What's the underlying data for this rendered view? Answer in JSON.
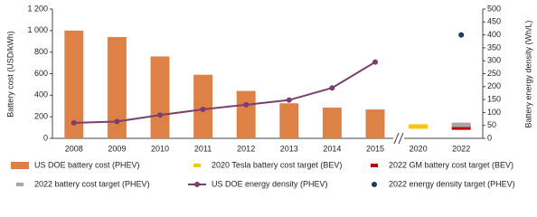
{
  "chart_data": {
    "type": "combo",
    "y_label": "Battery cost (USD/kWh)",
    "y2_label": "Battery energy density (Wh/L)",
    "categories": [
      "2008",
      "2009",
      "2010",
      "2011",
      "2012",
      "2013",
      "2014",
      "2015",
      "2020",
      "2022"
    ],
    "ylim": [
      0,
      1200
    ],
    "yticks": [
      0,
      200,
      400,
      600,
      800,
      {
        "value": 1000,
        "label": "1 000"
      },
      {
        "value": 1200,
        "label": "1 200"
      }
    ],
    "y2lim": [
      0,
      500
    ],
    "y2ticks": [
      0,
      50,
      100,
      150,
      200,
      250,
      300,
      350,
      400,
      450,
      500
    ],
    "grid": false,
    "series": [
      {
        "name": "US DOE battery cost (PHEV)",
        "type": "bar",
        "color": "#dd8147",
        "values": [
          1000,
          940,
          760,
          590,
          440,
          325,
          285,
          268,
          null,
          null
        ]
      },
      {
        "name": "2020 Tesla battery cost target (BEV)",
        "type": "dash",
        "color": "#f5c518",
        "values": [
          null,
          null,
          null,
          null,
          null,
          null,
          null,
          null,
          110,
          null
        ]
      },
      {
        "name": "2022 GM battery cost target (BEV)",
        "type": "dash",
        "color": "#c00000",
        "values": [
          null,
          null,
          null,
          null,
          null,
          null,
          null,
          null,
          null,
          100
        ]
      },
      {
        "name": "2022 battery cost target (PHEV)",
        "type": "dash",
        "color": "#a6a6a6",
        "values": [
          null,
          null,
          null,
          null,
          null,
          null,
          null,
          null,
          null,
          125
        ]
      },
      {
        "name": "US DOE energy density (PHEV)",
        "type": "line",
        "axis": "y2",
        "color": "#7b3f6e",
        "values": [
          60,
          65,
          90,
          112,
          130,
          148,
          195,
          295,
          null,
          null
        ]
      },
      {
        "name": "2022 energy density target (PHEV)",
        "type": "point",
        "axis": "y2",
        "color": "#1f3864",
        "values": [
          null,
          null,
          null,
          null,
          null,
          null,
          null,
          null,
          null,
          400
        ]
      }
    ]
  }
}
